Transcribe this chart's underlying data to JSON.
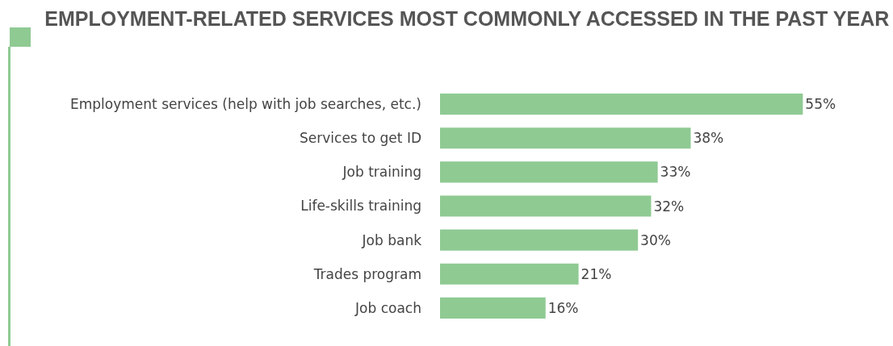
{
  "chart_data": {
    "type": "bar",
    "orientation": "horizontal",
    "title": "EMPLOYMENT-RELATED SERVICES MOST COMMONLY ACCESSED IN THE PAST YEAR",
    "categories": [
      "Employment services (help with job searches, etc.)",
      "Services to get ID",
      "Job training",
      "Life-skills training",
      "Job bank",
      "Trades program",
      "Job coach"
    ],
    "values": [
      55,
      38,
      33,
      32,
      30,
      21,
      16
    ],
    "value_labels": [
      "55%",
      "38%",
      "33%",
      "32%",
      "30%",
      "21%",
      "16%"
    ],
    "color": "#8fca93",
    "grid": false,
    "legend": false
  }
}
